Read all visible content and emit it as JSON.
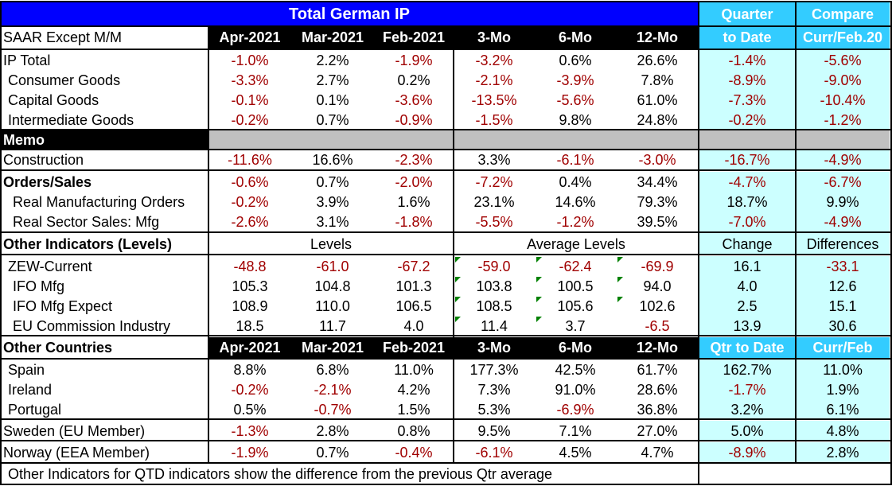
{
  "title": "Total German IP",
  "header": {
    "left_label": "SAAR Except M/M",
    "periods": [
      "Apr-2021",
      "Mar-2021",
      "Feb-2021",
      "3-Mo",
      "6-Mo",
      "12-Mo"
    ],
    "qtd_line1": "Quarter",
    "qtd_line2": "to Date",
    "cmp_line1": "Compare",
    "cmp_line2": "Curr/Feb.20"
  },
  "ip_rows": [
    {
      "label": "IP Total",
      "values": [
        "-1.0%",
        "2.2%",
        "-1.9%",
        "-3.2%",
        "0.6%",
        "26.6%",
        "-1.4%",
        "-5.6%"
      ]
    },
    {
      "label": "Consumer Goods",
      "values": [
        "-3.3%",
        "2.7%",
        "0.2%",
        "-2.1%",
        "-3.9%",
        "7.8%",
        "-8.9%",
        "-9.0%"
      ]
    },
    {
      "label": "Capital Goods",
      "values": [
        "-0.1%",
        "0.1%",
        "-3.6%",
        "-13.5%",
        "-5.6%",
        "61.0%",
        "-7.3%",
        "-10.4%"
      ]
    },
    {
      "label": "Intermediate Goods",
      "values": [
        "-0.2%",
        "0.7%",
        "-0.9%",
        "-1.5%",
        "9.8%",
        "24.8%",
        "-0.2%",
        "-1.2%"
      ]
    }
  ],
  "memo_label": "Memo",
  "construction": {
    "label": "Construction",
    "values": [
      "-11.6%",
      "16.6%",
      "-2.3%",
      "3.3%",
      "-6.1%",
      "-3.0%",
      "-16.7%",
      "-4.9%"
    ]
  },
  "orders_rows": [
    {
      "label": "Orders/Sales",
      "values": [
        "-0.6%",
        "0.7%",
        "-2.0%",
        "-7.2%",
        "0.4%",
        "34.4%",
        "-4.7%",
        "-6.7%"
      ]
    },
    {
      "label": "Real Manufacturing Orders",
      "values": [
        "-0.2%",
        "3.9%",
        "1.6%",
        "23.1%",
        "14.6%",
        "79.3%",
        "18.7%",
        "9.9%"
      ]
    },
    {
      "label": "Real Sector Sales: Mfg",
      "values": [
        "-2.6%",
        "3.1%",
        "-1.8%",
        "-5.5%",
        "-1.2%",
        "39.5%",
        "-7.0%",
        "-4.9%"
      ]
    }
  ],
  "other_header": {
    "label": "Other Indicators (Levels)",
    "levels": "Levels",
    "avg_levels": "Average Levels",
    "change": "Change",
    "differences": "Differences"
  },
  "indicator_rows": [
    {
      "label": "ZEW-Current",
      "values": [
        "-48.8",
        "-61.0",
        "-67.2",
        "-59.0",
        "-62.4",
        "-69.9",
        "16.1",
        "-33.1"
      ]
    },
    {
      "label": "IFO Mfg",
      "values": [
        "105.3",
        "104.8",
        "101.3",
        "103.8",
        "100.5",
        "94.0",
        "4.0",
        "12.6"
      ]
    },
    {
      "label": "IFO Mfg Expect",
      "values": [
        "108.9",
        "110.0",
        "106.5",
        "108.5",
        "105.6",
        "102.6",
        "2.5",
        "15.1"
      ]
    },
    {
      "label": "EU Commission Industry",
      "values": [
        "18.5",
        "11.7",
        "4.0",
        "11.4",
        "3.7",
        "-6.5",
        "13.9",
        "30.6"
      ]
    }
  ],
  "countries_header": {
    "label": "Other Countries",
    "periods": [
      "Apr-2021",
      "Mar-2021",
      "Feb-2021",
      "3-Mo",
      "6-Mo",
      "12-Mo"
    ],
    "qtd": "Qtr to Date",
    "cmp": "Curr/Feb"
  },
  "country_rows": [
    {
      "label": "Spain",
      "values": [
        "8.8%",
        "6.8%",
        "11.0%",
        "177.3%",
        "42.5%",
        "61.7%",
        "162.7%",
        "11.0%"
      ]
    },
    {
      "label": "Ireland",
      "values": [
        "-0.2%",
        "-2.1%",
        "4.2%",
        "7.3%",
        "91.0%",
        "28.6%",
        "-1.7%",
        "1.9%"
      ]
    },
    {
      "label": "Portugal",
      "values": [
        "0.5%",
        "-0.7%",
        "1.5%",
        "5.3%",
        "-6.9%",
        "36.8%",
        "3.2%",
        "6.1%"
      ]
    },
    {
      "label": "Sweden (EU Member)",
      "values": [
        "-1.3%",
        "2.8%",
        "0.8%",
        "9.5%",
        "7.1%",
        "27.0%",
        "5.0%",
        "4.8%"
      ]
    },
    {
      "label": "Norway (EEA Member)",
      "values": [
        "-1.9%",
        "0.7%",
        "-0.4%",
        "-6.1%",
        "4.5%",
        "4.7%",
        "-8.9%",
        "2.8%"
      ]
    }
  ],
  "footnote": "Other Indicators for QTD indicators show the difference from the previous Qtr average",
  "colors": {
    "title_bg": "#0000ff",
    "header_black": "#000000",
    "qtd_header": "#33ccff",
    "qtd_body": "#ccffff",
    "negative_text": "#a00000",
    "memo_gray": "#c0c0c0",
    "flag_triangle": "#008000"
  }
}
